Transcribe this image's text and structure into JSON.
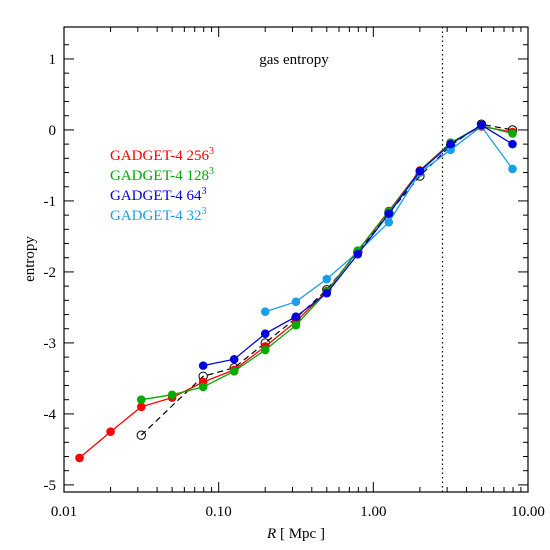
{
  "chart_data": {
    "type": "line",
    "title": "gas entropy",
    "xlabel_italic": "R",
    "xlabel_rest": " [ Mpc ]",
    "ylabel": "entropy",
    "xscale": "log",
    "xlim": [
      0.01,
      10.0
    ],
    "ylim": [
      -5.1,
      1.45
    ],
    "xticks": [
      0.01,
      0.1,
      1.0,
      10.0
    ],
    "xtick_labels": [
      "0.01",
      "0.10",
      "1.00",
      "10.00"
    ],
    "yticks": [
      -5,
      -4,
      -3,
      -2,
      -1,
      0,
      1
    ],
    "ytick_labels": [
      "-5",
      "-4",
      "-3",
      "-2",
      "-1",
      "0",
      "1"
    ],
    "grid": false,
    "legend_position": "upper-left",
    "vertical_line": {
      "x": 2.8,
      "style": "dotted"
    },
    "series": [
      {
        "name": "GADGET-4",
        "resolution_base": "256",
        "resolution_exp": "3",
        "color": "#ff0000",
        "x": [
          0.0126,
          0.02,
          0.0316,
          0.05,
          0.0794,
          0.126,
          0.2,
          0.316,
          0.5,
          0.794,
          1.26,
          2.0,
          3.16,
          5.0,
          7.94
        ],
        "y": [
          -4.62,
          -4.25,
          -3.9,
          -3.77,
          -3.55,
          -3.38,
          -3.05,
          -2.7,
          -2.27,
          -1.7,
          -1.14,
          -0.57,
          -0.18,
          0.05,
          -0.03
        ]
      },
      {
        "name": "GADGET-4",
        "resolution_base": "128",
        "resolution_exp": "3",
        "color": "#00aa00",
        "x": [
          0.0316,
          0.05,
          0.0794,
          0.126,
          0.2,
          0.316,
          0.5,
          0.794,
          1.26,
          2.0,
          3.16,
          5.0,
          7.94
        ],
        "y": [
          -3.8,
          -3.73,
          -3.62,
          -3.4,
          -3.1,
          -2.75,
          -2.28,
          -1.7,
          -1.15,
          -0.58,
          -0.18,
          0.06,
          -0.05
        ]
      },
      {
        "name": "GADGET-4",
        "resolution_base": "64",
        "resolution_exp": "3",
        "color": "#0000dd",
        "x": [
          0.0794,
          0.126,
          0.2,
          0.316,
          0.5,
          0.794,
          1.26,
          2.0,
          3.16,
          5.0,
          7.94
        ],
        "y": [
          -3.32,
          -3.23,
          -2.87,
          -2.63,
          -2.3,
          -1.75,
          -1.18,
          -0.58,
          -0.2,
          0.07,
          -0.2
        ]
      },
      {
        "name": "GADGET-4",
        "resolution_base": "32",
        "resolution_exp": "3",
        "color": "#1a9ee8",
        "x": [
          0.2,
          0.316,
          0.5,
          0.794,
          1.26,
          2.0,
          3.16,
          5.0,
          7.94
        ],
        "y": [
          -2.56,
          -2.42,
          -2.1,
          -1.72,
          -1.3,
          -0.6,
          -0.28,
          0.05,
          -0.55
        ]
      }
    ],
    "reference": {
      "style": "dashed-open-circles",
      "color": "#000000",
      "x": [
        0.0316,
        0.0794,
        0.126,
        0.2,
        0.316,
        0.5,
        0.794,
        1.26,
        2.0,
        3.16,
        5.0,
        7.94
      ],
      "y": [
        -4.3,
        -3.47,
        -3.35,
        -3.0,
        -2.65,
        -2.25,
        -1.72,
        -1.17,
        -0.65,
        -0.22,
        0.08,
        0.0
      ]
    }
  }
}
